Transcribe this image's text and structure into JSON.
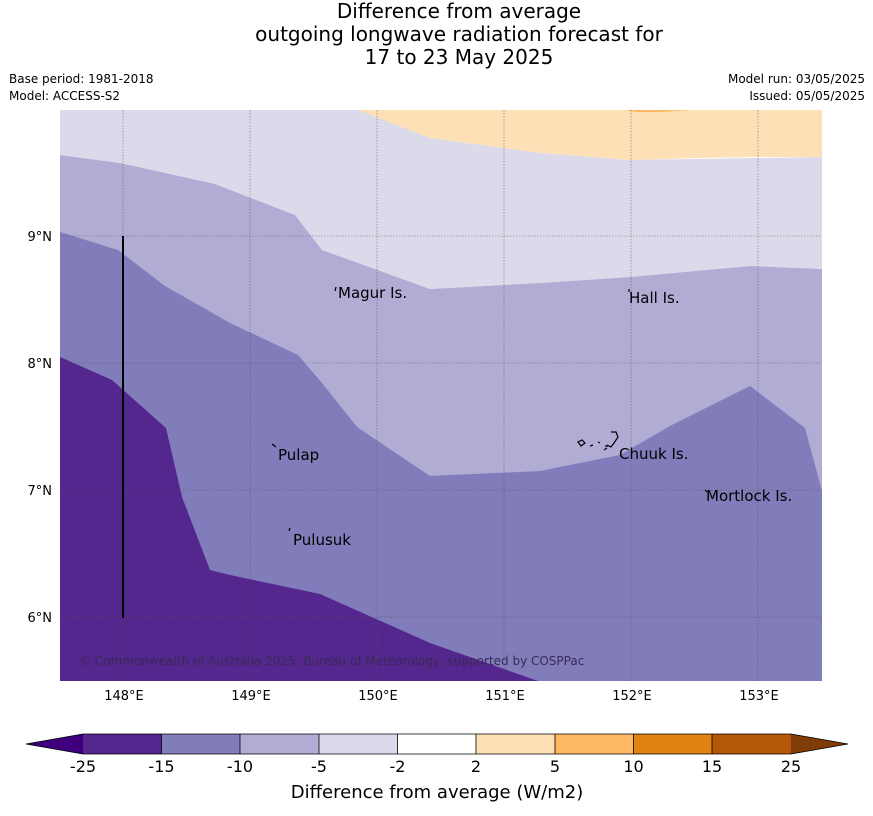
{
  "header": {
    "title_lines": [
      "Difference from average",
      "outgoing longwave radiation forecast for",
      "17 to 23 May 2025"
    ],
    "base_period": "Base period: 1981-2018",
    "model": "Model: ACCESS-S2",
    "model_run": "Model run: 03/05/2025",
    "issued": "Issued: 05/05/2025"
  },
  "map": {
    "lat_ticks": [
      "9°N",
      "8°N",
      "7°N",
      "6°N"
    ],
    "lon_ticks": [
      "148°E",
      "149°E",
      "150°E",
      "151°E",
      "152°E",
      "153°E"
    ],
    "places": {
      "magur": "Magur Is.",
      "hall": "Hall Is.",
      "pulap": "Pulap",
      "chuuk": "Chuuk Is.",
      "mortlock": "Mortlock Is.",
      "pulusuk": "Pulusuk"
    },
    "copyright": "© Commonwealth of Australia 2025, Bureau of Meteorology, supported by COSPPac",
    "colors": {
      "lt_m25": "#3f007d",
      "m25_m15": "#54278f",
      "m15_m10": "#807dba",
      "m10_m5": "#b1acd4",
      "m5_m2": "#dadaeb",
      "m2_2": "#ffffff",
      "p2_p5": "#fee0b6",
      "p5_p10": "#fdb863",
      "p10_p15": "#e08214",
      "p15_p25": "#b35806",
      "gt_p25": "#7f3b08"
    }
  },
  "colorbar": {
    "ticks": [
      "-25",
      "-15",
      "-10",
      "-5",
      "-2",
      "2",
      "5",
      "10",
      "15",
      "25"
    ],
    "label": "Difference from average (W/m2)"
  }
}
